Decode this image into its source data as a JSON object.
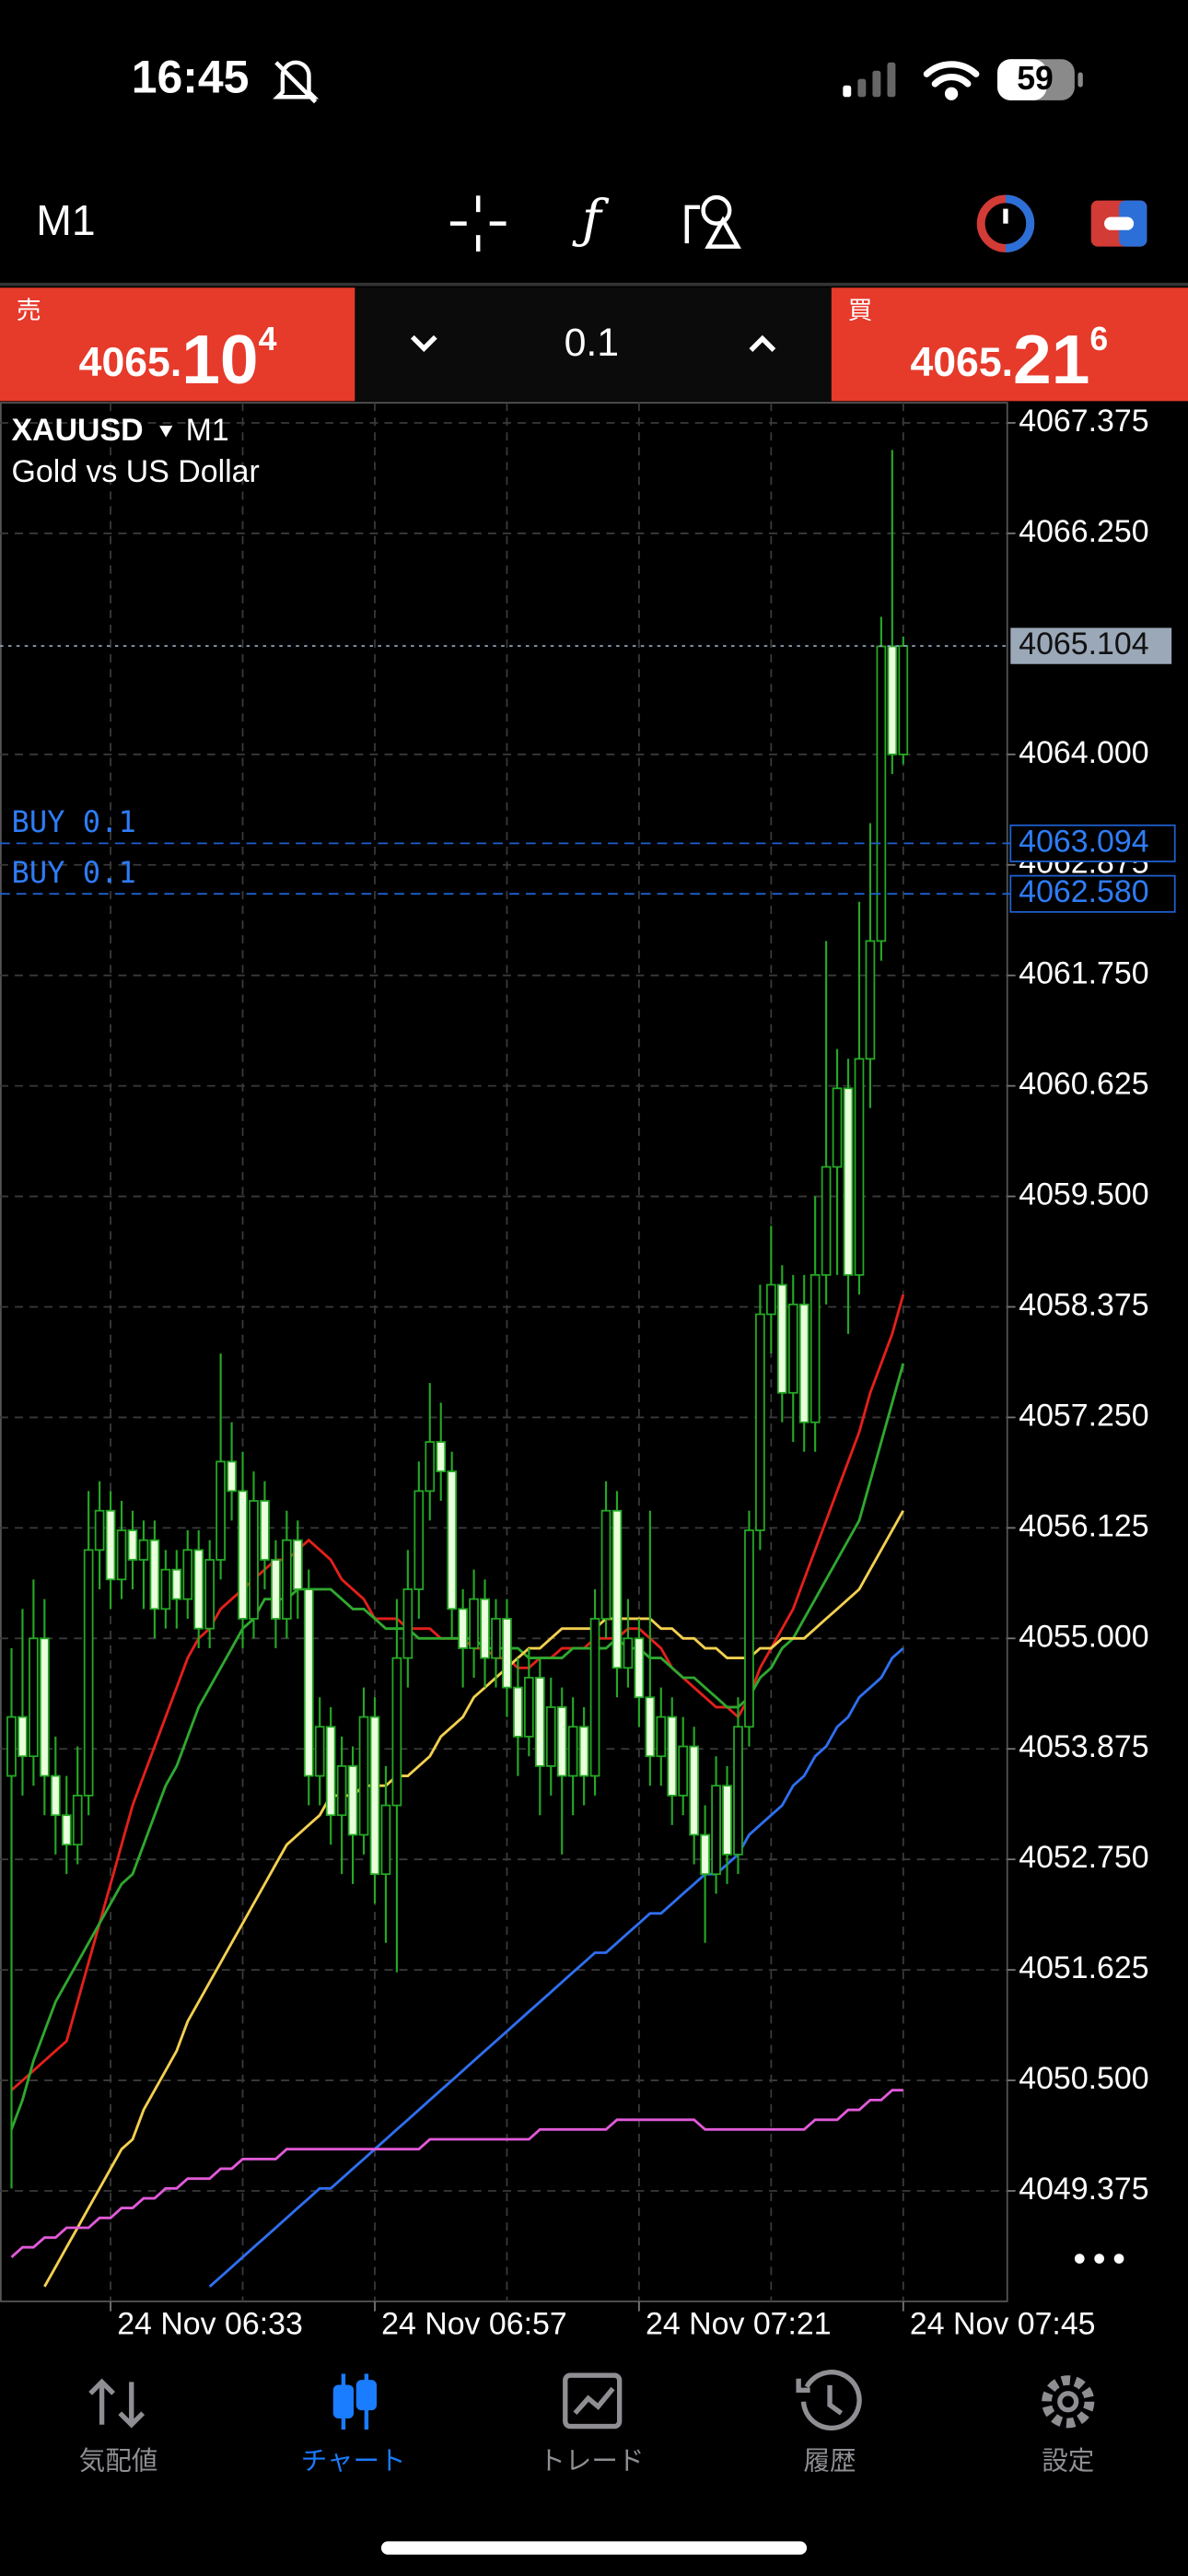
{
  "status_bar": {
    "time": "16:45",
    "battery": "59"
  },
  "toolbar": {
    "timeframe": "M1"
  },
  "trade_panel": {
    "sell": {
      "label": "売",
      "price_main": "4065.",
      "price_big": "10",
      "price_sup": "4"
    },
    "volume": "0.1",
    "buy": {
      "label": "買",
      "price_main": "4065.",
      "price_big": "21",
      "price_sup": "6"
    }
  },
  "chart": {
    "type": "candlestick",
    "symbol": "XAUUSD",
    "timeframe": "M1",
    "description": "Gold vs US Dollar",
    "ylim": [
      4048.25,
      4067.58
    ],
    "yticks": [
      4067.375,
      {
        "value": 4066.25,
        "label": "4066.250"
      },
      {
        "value": 4064,
        "label": "4064.000"
      },
      4062.875,
      {
        "value": 4061.75,
        "label": "4061.750"
      },
      4060.625,
      {
        "value": 4059.5,
        "label": "4059.500"
      },
      4058.375,
      {
        "value": 4057.25,
        "label": "4057.250"
      },
      4056.125,
      {
        "value": 4055,
        "label": "4055.000"
      },
      4053.875,
      {
        "value": 4052.75,
        "label": "4052.750"
      },
      4051.625,
      {
        "value": 4050.5,
        "label": "4050.500"
      },
      4049.375
    ],
    "grid": true,
    "time_labels": [
      "24 Nov 06:33",
      "24 Nov 06:57",
      "24 Nov 07:21",
      "24 Nov 07:45"
    ],
    "candle_color": "#25a825",
    "bear_fill": "#eaffdc",
    "bull_fill": "#000000",
    "candles": {
      "open": [
        4053.6,
        4054.2,
        4053.8,
        4055.0,
        4053.6,
        4053.2,
        4052.9,
        4053.4,
        4055.9,
        4056.3,
        4055.6,
        4056.1,
        4055.8,
        4056.0,
        4055.3,
        4055.7,
        4055.4,
        4055.9,
        4055.1,
        4055.8,
        4056.8,
        4056.5,
        4055.2,
        4056.4,
        4055.8,
        4055.2,
        4056.0,
        4055.5,
        4053.6,
        4054.1,
        4053.2,
        4053.7,
        4053.0,
        4054.2,
        4052.6,
        4053.3,
        4054.8,
        4055.5,
        4056.5,
        4057.0,
        4056.7,
        4055.3,
        4054.9,
        4055.4,
        4054.8,
        4055.2,
        4054.5,
        4054.0,
        4054.6,
        4053.7,
        4054.3,
        4053.6,
        4054.1,
        4053.6,
        4055.2,
        4056.3,
        4054.7,
        4055.0,
        4054.4,
        4053.8,
        4054.2,
        4053.4,
        4053.9,
        4053.0,
        4052.6,
        4053.5,
        4052.8,
        4054.1,
        4056.1,
        4058.3,
        4058.6,
        4057.5,
        4058.4,
        4057.2,
        4058.7,
        4059.8,
        4060.6,
        4058.7,
        4060.9,
        4062.1,
        4065.1,
        4064.0
      ],
      "high": [
        4054.9,
        4055.3,
        4055.6,
        4055.4,
        4054.0,
        4053.6,
        4053.9,
        4056.5,
        4056.6,
        4056.5,
        4056.4,
        4056.3,
        4056.2,
        4056.2,
        4055.9,
        4055.9,
        4056.1,
        4056.1,
        4056.0,
        4057.9,
        4057.2,
        4056.9,
        4056.7,
        4056.6,
        4056.0,
        4056.3,
        4056.2,
        4055.7,
        4054.4,
        4054.3,
        4054.0,
        4053.9,
        4054.5,
        4054.4,
        4053.7,
        4055.4,
        4055.9,
        4056.8,
        4057.6,
        4057.4,
        4056.9,
        4055.5,
        4055.7,
        4055.6,
        4055.4,
        4055.4,
        4054.8,
        4054.9,
        4054.8,
        4054.6,
        4054.5,
        4054.4,
        4054.3,
        4055.5,
        4056.6,
        4056.5,
        4055.4,
        4055.2,
        4056.3,
        4054.5,
        4054.4,
        4054.2,
        4054.1,
        4053.3,
        4053.8,
        4053.7,
        4054.4,
        4056.3,
        4058.6,
        4059.2,
        4058.8,
        4058.7,
        4058.7,
        4059.5,
        4062.1,
        4061.0,
        4060.9,
        4062.5,
        4063.3,
        4065.4,
        4067.1,
        4065.2
      ],
      "low": [
        4049.4,
        4053.4,
        4053.5,
        4053.2,
        4052.8,
        4052.6,
        4052.7,
        4053.2,
        4055.5,
        4055.3,
        4055.4,
        4055.5,
        4055.3,
        4055.0,
        4055.1,
        4055.1,
        4055.2,
        4054.9,
        4054.9,
        4055.6,
        4056.2,
        4054.9,
        4055.0,
        4055.5,
        4054.9,
        4055.0,
        4055.2,
        4053.3,
        4053.3,
        4052.9,
        4052.6,
        4052.5,
        4052.8,
        4052.3,
        4051.9,
        4051.6,
        4054.5,
        4055.2,
        4056.2,
        4056.4,
        4055.0,
        4054.5,
        4054.6,
        4054.5,
        4054.5,
        4054.2,
        4053.6,
        4053.8,
        4053.2,
        4053.4,
        4052.8,
        4053.2,
        4053.3,
        4053.4,
        4055.0,
        4054.4,
        4054.5,
        4054.1,
        4053.5,
        4053.5,
        4053.1,
        4053.2,
        4052.7,
        4051.9,
        4052.4,
        4052.5,
        4052.6,
        4053.9,
        4055.9,
        4057.9,
        4057.2,
        4057.0,
        4056.9,
        4056.9,
        4058.4,
        4058.7,
        4058.1,
        4058.5,
        4060.4,
        4061.9,
        4063.8,
        4063.9
      ],
      "close": [
        4054.2,
        4053.8,
        4055.0,
        4053.6,
        4053.2,
        4052.9,
        4053.4,
        4055.9,
        4056.3,
        4055.6,
        4056.1,
        4055.8,
        4056.0,
        4055.3,
        4055.7,
        4055.4,
        4055.9,
        4055.1,
        4055.8,
        4056.8,
        4056.5,
        4055.2,
        4056.4,
        4055.8,
        4055.2,
        4056.0,
        4055.5,
        4053.6,
        4054.1,
        4053.2,
        4053.7,
        4053.0,
        4054.2,
        4052.6,
        4053.3,
        4054.8,
        4055.5,
        4056.5,
        4057.0,
        4056.7,
        4055.3,
        4054.9,
        4055.4,
        4054.8,
        4055.2,
        4054.5,
        4054.0,
        4054.6,
        4053.7,
        4054.3,
        4053.6,
        4054.1,
        4053.6,
        4055.2,
        4056.3,
        4054.7,
        4055.0,
        4054.4,
        4053.8,
        4054.2,
        4053.4,
        4053.9,
        4053.0,
        4052.6,
        4053.5,
        4052.8,
        4054.1,
        4056.1,
        4058.3,
        4058.6,
        4057.5,
        4058.4,
        4057.2,
        4058.7,
        4059.8,
        4060.6,
        4058.7,
        4060.9,
        4062.1,
        4065.1,
        4064.0,
        4065.104
      ]
    },
    "moving_averages": [
      {
        "color": "#e3201b",
        "values": [
          4050.4,
          4050.5,
          4050.6,
          4050.7,
          4050.8,
          4050.9,
          4051.3,
          4051.7,
          4052.1,
          4052.5,
          4052.9,
          4053.3,
          4053.6,
          4053.9,
          4054.2,
          4054.5,
          4054.8,
          4055.0,
          4055.1,
          4055.3,
          4055.4,
          4055.5,
          4055.6,
          4055.7,
          4055.8,
          4055.8,
          4055.9,
          4056.0,
          4055.9,
          4055.8,
          4055.6,
          4055.5,
          4055.4,
          4055.2,
          4055.2,
          4055.2,
          4055.1,
          4055.1,
          4055.1,
          4055.0,
          4055.0,
          4055.0,
          4054.9,
          4054.9,
          4054.8,
          4054.8,
          4054.7,
          4054.7,
          4054.8,
          4054.8,
          4054.9,
          4054.9,
          4054.9,
          4055.0,
          4055.0,
          4055.0,
          4055.1,
          4055.1,
          4055.0,
          4054.9,
          4054.7,
          4054.6,
          4054.5,
          4054.4,
          4054.3,
          4054.3,
          4054.2,
          4054.4,
          4054.7,
          4054.9,
          4055.1,
          4055.3,
          4055.6,
          4055.9,
          4056.2,
          4056.5,
          4056.8,
          4057.1,
          4057.5,
          4057.8,
          4058.1,
          4058.5
        ]
      },
      {
        "color": "#2fa82f",
        "values": [
          4050.0,
          4050.3,
          4050.7,
          4051.0,
          4051.3,
          4051.5,
          4051.7,
          4051.9,
          4052.1,
          4052.3,
          4052.5,
          4052.6,
          4052.9,
          4053.2,
          4053.5,
          4053.7,
          4054.0,
          4054.3,
          4054.5,
          4054.7,
          4054.9,
          4055.1,
          4055.2,
          4055.4,
          4055.4,
          4055.4,
          4055.5,
          4055.5,
          4055.5,
          4055.5,
          4055.4,
          4055.3,
          4055.3,
          4055.2,
          4055.1,
          4055.1,
          4055.1,
          4055.0,
          4055.0,
          4055.0,
          4055.0,
          4055.0,
          4055.0,
          4054.9,
          4054.9,
          4054.9,
          4054.9,
          4054.8,
          4054.8,
          4054.8,
          4054.8,
          4054.9,
          4054.9,
          4054.9,
          4054.9,
          4055.0,
          4054.9,
          4054.9,
          4054.8,
          4054.8,
          4054.7,
          4054.6,
          4054.6,
          4054.5,
          4054.4,
          4054.3,
          4054.3,
          4054.4,
          4054.6,
          4054.7,
          4054.9,
          4055.0,
          4055.2,
          4055.4,
          4055.6,
          4055.8,
          4056.0,
          4056.2,
          4056.6,
          4057.0,
          4057.4,
          4057.8
        ]
      },
      {
        "color": "#f3d050",
        "values": [
          null,
          null,
          null,
          4048.4,
          4048.6,
          4048.8,
          4049.0,
          4049.2,
          4049.4,
          4049.6,
          4049.8,
          4049.9,
          4050.2,
          4050.4,
          4050.6,
          4050.8,
          4051.1,
          4051.3,
          4051.5,
          4051.7,
          4051.9,
          4052.1,
          4052.3,
          4052.5,
          4052.7,
          4052.9,
          4053.0,
          4053.1,
          4053.2,
          4053.4,
          4053.4,
          4053.4,
          4053.5,
          4053.5,
          4053.5,
          4053.6,
          4053.6,
          4053.7,
          4053.8,
          4054.0,
          4054.1,
          4054.2,
          4054.4,
          4054.5,
          4054.6,
          4054.7,
          4054.8,
          4054.9,
          4054.9,
          4055.0,
          4055.1,
          4055.1,
          4055.1,
          4055.1,
          4055.2,
          4055.2,
          4055.2,
          4055.2,
          4055.2,
          4055.1,
          4055.1,
          4055.0,
          4055.0,
          4054.9,
          4054.9,
          4054.8,
          4054.8,
          4054.8,
          4054.9,
          4054.9,
          4055.0,
          4055.0,
          4055.0,
          4055.1,
          4055.2,
          4055.3,
          4055.4,
          4055.5,
          4055.7,
          4055.9,
          4056.1,
          4056.3
        ]
      },
      {
        "color": "#2f6ff0",
        "values": [
          null,
          null,
          null,
          null,
          null,
          null,
          null,
          null,
          null,
          null,
          null,
          null,
          null,
          null,
          null,
          null,
          null,
          null,
          4048.4,
          4048.5,
          4048.6,
          4048.7,
          4048.8,
          4048.9,
          4049.0,
          4049.1,
          4049.2,
          4049.3,
          4049.4,
          4049.4,
          4049.5,
          4049.6,
          4049.7,
          4049.8,
          4049.9,
          4050.0,
          4050.1,
          4050.2,
          4050.3,
          4050.4,
          4050.5,
          4050.6,
          4050.7,
          4050.8,
          4050.9,
          4051.0,
          4051.1,
          4051.2,
          4051.3,
          4051.4,
          4051.5,
          4051.6,
          4051.7,
          4051.8,
          4051.8,
          4051.9,
          4052.0,
          4052.1,
          4052.2,
          4052.2,
          4052.3,
          4052.4,
          4052.5,
          4052.6,
          4052.6,
          4052.7,
          4052.8,
          4053.0,
          4053.1,
          4053.2,
          4053.3,
          4053.5,
          4053.6,
          4053.8,
          4053.9,
          4054.1,
          4054.2,
          4054.4,
          4054.5,
          4054.6,
          4054.8,
          4054.9
        ]
      },
      {
        "color": "#e05ad8",
        "values": [
          4048.7,
          4048.8,
          4048.8,
          4048.9,
          4048.9,
          4049.0,
          4049.0,
          4049.0,
          4049.1,
          4049.1,
          4049.2,
          4049.2,
          4049.3,
          4049.3,
          4049.4,
          4049.4,
          4049.5,
          4049.5,
          4049.5,
          4049.6,
          4049.6,
          4049.7,
          4049.7,
          4049.7,
          4049.7,
          4049.8,
          4049.8,
          4049.8,
          4049.8,
          4049.8,
          4049.8,
          4049.8,
          4049.8,
          4049.8,
          4049.8,
          4049.8,
          4049.8,
          4049.8,
          4049.9,
          4049.9,
          4049.9,
          4049.9,
          4049.9,
          4049.9,
          4049.9,
          4049.9,
          4049.9,
          4049.9,
          4050.0,
          4050.0,
          4050.0,
          4050.0,
          4050.0,
          4050.0,
          4050.0,
          4050.1,
          4050.1,
          4050.1,
          4050.1,
          4050.1,
          4050.1,
          4050.1,
          4050.1,
          4050.0,
          4050.0,
          4050.0,
          4050.0,
          4050.0,
          4050.0,
          4050.0,
          4050.0,
          4050.0,
          4050.0,
          4050.1,
          4050.1,
          4050.1,
          4050.2,
          4050.2,
          4050.3,
          4050.3,
          4050.4,
          4050.4
        ]
      }
    ],
    "current_price": 4065.104,
    "positions": [
      {
        "label": "BUY 0.1",
        "price": 4063.094
      },
      {
        "label": "BUY 0.1",
        "price": {
          "value": 4062.58,
          "label": "4062.580"
        }
      }
    ]
  },
  "tab_bar": {
    "tabs": [
      "気配値",
      "チャート",
      "トレード",
      "履歴",
      "設定"
    ]
  }
}
